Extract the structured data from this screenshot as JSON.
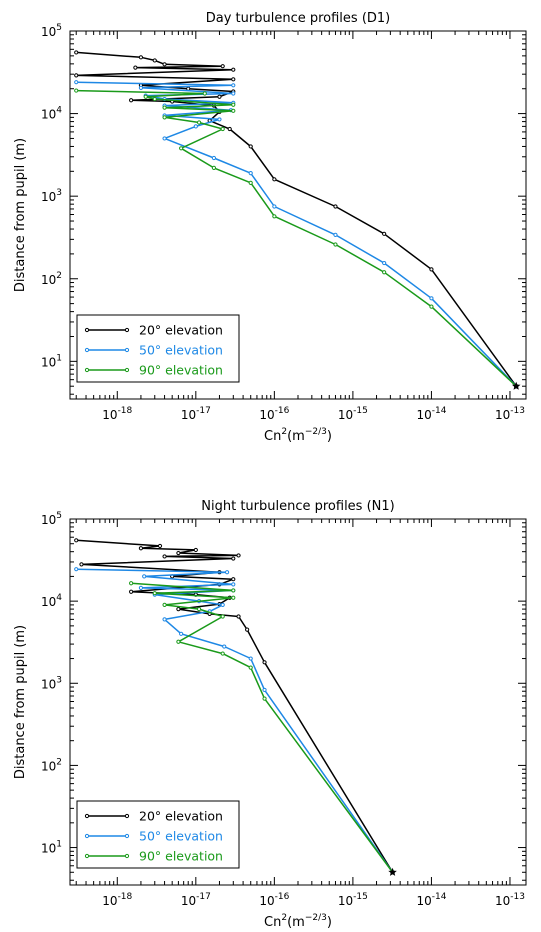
{
  "chart_data": [
    {
      "type": "line",
      "title": "Day turbulence profiles (D1)",
      "xlabel_base": "Cn",
      "xlabel_sup1": "2",
      "xlabel_paren": "(m",
      "xlabel_sup2": "−2/3",
      "xlabel_close": ")",
      "ylabel": "Distance from pupil (m)",
      "x_scale": "log",
      "y_scale": "log",
      "xlim": [
        2.5e-19,
        1.6e-13
      ],
      "ylim": [
        3.5,
        100000
      ],
      "x_ticks": [
        {
          "value": 1e-18,
          "base": "10",
          "exp": "-18"
        },
        {
          "value": 1e-17,
          "base": "10",
          "exp": "-17"
        },
        {
          "value": 1e-16,
          "base": "10",
          "exp": "-16"
        },
        {
          "value": 1e-15,
          "base": "10",
          "exp": "-15"
        },
        {
          "value": 1e-14,
          "base": "10",
          "exp": "-14"
        },
        {
          "value": 1e-13,
          "base": "10",
          "exp": "-13"
        }
      ],
      "y_ticks": [
        {
          "value": 10,
          "base": "10",
          "exp": "1"
        },
        {
          "value": 100,
          "base": "10",
          "exp": "2"
        },
        {
          "value": 1000,
          "base": "10",
          "exp": "3"
        },
        {
          "value": 10000,
          "base": "10",
          "exp": "4"
        },
        {
          "value": 100000,
          "base": "10",
          "exp": "5"
        }
      ],
      "legend_position": "bottom-left",
      "grid": false,
      "series": [
        {
          "name": "20° elevation",
          "color": "#000000",
          "points": [
            [
              1.2e-13,
              5
            ],
            [
              1e-14,
              130
            ],
            [
              2.5e-15,
              350
            ],
            [
              6e-16,
              750
            ],
            [
              1e-16,
              1600
            ],
            [
              5e-17,
              4000
            ],
            [
              2.7e-17,
              6500
            ],
            [
              1.5e-17,
              8200
            ],
            [
              2e-17,
              10500
            ],
            [
              1.7e-17,
              12500
            ],
            [
              5e-18,
              14000
            ],
            [
              1.5e-18,
              14500
            ],
            [
              2e-17,
              16000
            ],
            [
              3e-17,
              18500
            ],
            [
              8e-18,
              20000
            ],
            [
              2e-18,
              22000
            ],
            [
              3e-17,
              26000
            ],
            [
              3e-19,
              29000
            ],
            [
              3e-17,
              34000
            ],
            [
              1.7e-18,
              36000
            ],
            [
              2.2e-17,
              37500
            ],
            [
              4e-18,
              39500
            ],
            [
              3e-18,
              44000
            ],
            [
              2e-18,
              48000
            ],
            [
              3e-19,
              55000
            ]
          ]
        },
        {
          "name": "50° elevation",
          "color": "#1e88e5",
          "points": [
            [
              1.2e-13,
              5
            ],
            [
              1e-14,
              58
            ],
            [
              2.5e-15,
              155
            ],
            [
              6e-16,
              340
            ],
            [
              1e-16,
              750
            ],
            [
              5e-17,
              1900
            ],
            [
              1.7e-17,
              2900
            ],
            [
              4e-18,
              5000
            ],
            [
              1e-17,
              7000
            ],
            [
              2e-17,
              8500
            ],
            [
              4e-18,
              9500
            ],
            [
              2.8e-17,
              11000
            ],
            [
              4e-18,
              12500
            ],
            [
              3e-17,
              13500
            ],
            [
              4e-18,
              15000
            ],
            [
              2.3e-18,
              16500
            ],
            [
              3e-17,
              17500
            ],
            [
              2e-18,
              20500
            ],
            [
              3e-17,
              22000
            ],
            [
              3e-19,
              24000
            ]
          ]
        },
        {
          "name": "90° elevation",
          "color": "#1a9a1a",
          "points": [
            [
              1.2e-13,
              5
            ],
            [
              1e-14,
              46
            ],
            [
              2.5e-15,
              120
            ],
            [
              6e-16,
              260
            ],
            [
              1e-16,
              570
            ],
            [
              5e-17,
              1450
            ],
            [
              1.7e-17,
              2200
            ],
            [
              6.5e-18,
              3800
            ],
            [
              2.2e-17,
              6500
            ],
            [
              1.1e-17,
              7800
            ],
            [
              4e-18,
              9000
            ],
            [
              3e-17,
              10800
            ],
            [
              4e-18,
              11800
            ],
            [
              3e-17,
              12800
            ],
            [
              3e-18,
              15000
            ],
            [
              2.3e-18,
              16000
            ],
            [
              1.3e-17,
              17500
            ],
            [
              3e-19,
              19000
            ]
          ]
        }
      ]
    },
    {
      "type": "line",
      "title": "Night turbulence profiles (N1)",
      "xlabel_base": "Cn",
      "xlabel_sup1": "2",
      "xlabel_paren": "(m",
      "xlabel_sup2": "−2/3",
      "xlabel_close": ")",
      "ylabel": "Distance from pupil (m)",
      "x_scale": "log",
      "y_scale": "log",
      "xlim": [
        2.5e-19,
        1.6e-13
      ],
      "ylim": [
        3.5,
        100000
      ],
      "x_ticks": [
        {
          "value": 1e-18,
          "base": "10",
          "exp": "-18"
        },
        {
          "value": 1e-17,
          "base": "10",
          "exp": "-17"
        },
        {
          "value": 1e-16,
          "base": "10",
          "exp": "-16"
        },
        {
          "value": 1e-15,
          "base": "10",
          "exp": "-15"
        },
        {
          "value": 1e-14,
          "base": "10",
          "exp": "-14"
        },
        {
          "value": 1e-13,
          "base": "10",
          "exp": "-13"
        }
      ],
      "y_ticks": [
        {
          "value": 10,
          "base": "10",
          "exp": "1"
        },
        {
          "value": 100,
          "base": "10",
          "exp": "2"
        },
        {
          "value": 1000,
          "base": "10",
          "exp": "3"
        },
        {
          "value": 10000,
          "base": "10",
          "exp": "4"
        },
        {
          "value": 100000,
          "base": "10",
          "exp": "5"
        }
      ],
      "legend_position": "bottom-left",
      "grid": false,
      "series": [
        {
          "name": "20° elevation",
          "color": "#000000",
          "points": [
            [
              3.2e-15,
              5
            ],
            [
              7.5e-17,
              1800
            ],
            [
              4.5e-17,
              4500
            ],
            [
              3.5e-17,
              6500
            ],
            [
              1.5e-17,
              7000
            ],
            [
              6e-18,
              8000
            ],
            [
              2e-17,
              9200
            ],
            [
              2.7e-17,
              11000
            ],
            [
              1e-17,
              12000
            ],
            [
              1.5e-18,
              13000
            ],
            [
              2e-17,
              16000
            ],
            [
              3e-17,
              18500
            ],
            [
              5e-18,
              20000
            ],
            [
              2e-17,
              22500
            ],
            [
              3.5e-19,
              28000
            ],
            [
              3e-17,
              33000
            ],
            [
              4e-18,
              35000
            ],
            [
              3.5e-17,
              36000
            ],
            [
              6e-18,
              38500
            ],
            [
              1e-17,
              42000
            ],
            [
              2e-18,
              44000
            ],
            [
              3.5e-18,
              47000
            ],
            [
              3e-19,
              55000
            ]
          ]
        },
        {
          "name": "50° elevation",
          "color": "#1e88e5",
          "points": [
            [
              3.2e-15,
              5
            ],
            [
              7.5e-17,
              830
            ],
            [
              5e-17,
              2000
            ],
            [
              2.3e-17,
              2800
            ],
            [
              6.5e-18,
              4000
            ],
            [
              4e-18,
              6000
            ],
            [
              1.5e-17,
              7500
            ],
            [
              2.2e-17,
              9000
            ],
            [
              1.1e-17,
              10000
            ],
            [
              3e-18,
              12000
            ],
            [
              3e-17,
              13500
            ],
            [
              2e-18,
              14500
            ],
            [
              3e-17,
              16000
            ],
            [
              2.2e-18,
              20000
            ],
            [
              2.5e-17,
              22500
            ],
            [
              3e-19,
              24500
            ]
          ]
        },
        {
          "name": "90° elevation",
          "color": "#1a9a1a",
          "points": [
            [
              3.2e-15,
              5
            ],
            [
              7.5e-17,
              650
            ],
            [
              5e-17,
              1550
            ],
            [
              2.2e-17,
              2300
            ],
            [
              6e-18,
              3200
            ],
            [
              2.2e-17,
              6500
            ],
            [
              1.1e-17,
              8000
            ],
            [
              4e-18,
              9000
            ],
            [
              3e-17,
              11000
            ],
            [
              3e-18,
              12500
            ],
            [
              3e-17,
              13500
            ],
            [
              1.5e-18,
              16500
            ]
          ]
        }
      ]
    }
  ]
}
